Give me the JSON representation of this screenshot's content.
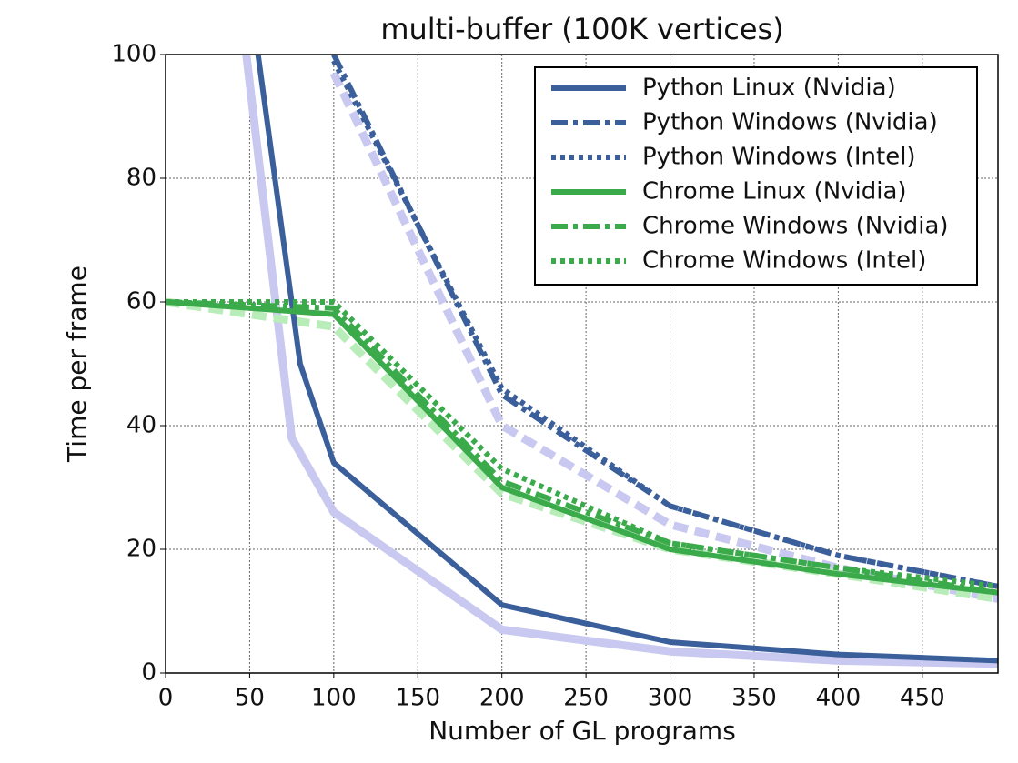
{
  "chart_data": {
    "type": "line",
    "title": "multi-buffer (100K vertices)",
    "x_label": "Number of GL programs",
    "y_label": "Time per frame",
    "xlim": [
      0,
      495
    ],
    "ylim": [
      0,
      100
    ],
    "xticks": [
      0,
      50,
      100,
      150,
      200,
      250,
      300,
      350,
      400,
      450
    ],
    "yticks": [
      0,
      20,
      40,
      60,
      80,
      100
    ],
    "grid": true,
    "legend": "upper right",
    "faint_series": [
      {
        "color": "#c8c8f0",
        "dash": "solid",
        "x": [
          48,
          75,
          100,
          200,
          300,
          400,
          495
        ],
        "values": [
          100,
          38,
          26,
          7,
          3.5,
          2,
          1.5
        ]
      },
      {
        "color": "#c8c8f0",
        "dash": "dashed",
        "x": [
          100,
          200,
          300,
          400,
          495
        ],
        "values": [
          97,
          40,
          24,
          17,
          12
        ]
      },
      {
        "color": "#b8ecb8",
        "dash": "dashed",
        "x": [
          0,
          100,
          200,
          300,
          400,
          495
        ],
        "values": [
          60,
          56,
          29,
          20,
          16,
          12
        ]
      }
    ],
    "series": [
      {
        "name": "Python Linux (Nvidia)",
        "color": "#3a5f9a",
        "dash": "solid",
        "x": [
          55,
          80,
          100,
          200,
          300,
          400,
          495
        ],
        "values": [
          100,
          50,
          34,
          11,
          5,
          3,
          2
        ]
      },
      {
        "name": "Python Windows (Nvidia)",
        "color": "#3a5f9a",
        "dash": "dashdot",
        "x": [
          100,
          200,
          300,
          400,
          495
        ],
        "values": [
          100,
          45,
          27,
          19,
          14
        ]
      },
      {
        "name": "Python Windows (Intel)",
        "color": "#3a5f9a",
        "dash": "dotted",
        "x": [
          100,
          200,
          300,
          400,
          495
        ],
        "values": [
          99,
          46,
          27,
          19,
          14
        ]
      },
      {
        "name": "Chrome Linux (Nvidia)",
        "color": "#3aaa4a",
        "dash": "solid",
        "x": [
          0,
          100,
          200,
          300,
          400,
          495
        ],
        "values": [
          60,
          58,
          30,
          20,
          16,
          13
        ]
      },
      {
        "name": "Chrome Windows (Nvidia)",
        "color": "#3aaa4a",
        "dash": "dashdot",
        "x": [
          0,
          100,
          200,
          300,
          400,
          495
        ],
        "values": [
          60,
          59,
          31,
          21,
          17,
          13
        ]
      },
      {
        "name": "Chrome Windows (Intel)",
        "color": "#3aaa4a",
        "dash": "dotted",
        "x": [
          0,
          100,
          200,
          300,
          400,
          495
        ],
        "values": [
          60,
          60,
          33,
          21,
          17,
          14
        ]
      }
    ]
  }
}
